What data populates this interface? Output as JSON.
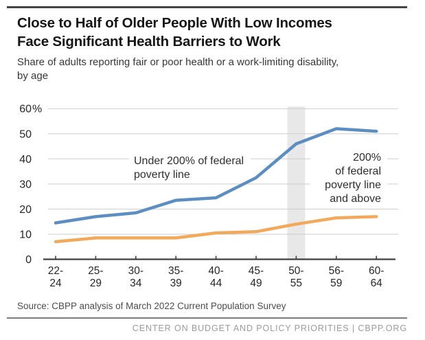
{
  "header": {
    "title_lines": {
      "line1": "Close to Half of Older People With Low Incomes",
      "line2": "Face Significant Health Barriers to Work"
    },
    "subtitle_lines": {
      "line1": "Share of adults reporting fair or poor health or a work-limiting disability,",
      "line2": "by age"
    }
  },
  "chart_data": {
    "type": "line",
    "categories": [
      "22-24",
      "25-29",
      "30-34",
      "35-39",
      "40-44",
      "45-49",
      "50-55",
      "56-59",
      "60-64"
    ],
    "series": [
      {
        "name": "Under 200% of federal poverty line",
        "color": "#5d8ec2",
        "values": [
          14.5,
          17,
          18.5,
          23.5,
          24.5,
          32.5,
          46,
          52,
          51
        ]
      },
      {
        "name": "200% of federal poverty line and above",
        "color": "#f2a95c",
        "values": [
          7,
          8.5,
          8.5,
          8.5,
          10.5,
          11,
          14,
          16.5,
          17
        ]
      }
    ],
    "ylim": [
      0,
      60
    ],
    "yticks": [
      0,
      10,
      20,
      30,
      40,
      50,
      60
    ],
    "ytick_labels": [
      "0",
      "10",
      "20",
      "30",
      "40",
      "50",
      "60%"
    ],
    "xlabel": "",
    "ylabel": "",
    "grid": true,
    "legend_position": "none",
    "highlight_band_category": "50-55",
    "highlight_band_color": "#e8e8e8",
    "annotations": [
      {
        "lines": [
          "Under 200% of federal",
          "poverty line"
        ],
        "align": "left"
      },
      {
        "lines": [
          "200%",
          "of federal",
          "poverty line",
          "and above"
        ],
        "align": "right"
      }
    ]
  },
  "footer": {
    "source": "Source: CBPP analysis of March 2022 Current Population Survey",
    "branding": "CENTER ON BUDGET AND POLICY PRIORITIES | CBPP.ORG"
  },
  "colors": {
    "series_low_income": "#5d8ec2",
    "series_higher_income": "#f2a95c",
    "highlight_band": "#e8e8e8",
    "gridline": "#cdcdcd",
    "axis": "#3f3f3f"
  }
}
